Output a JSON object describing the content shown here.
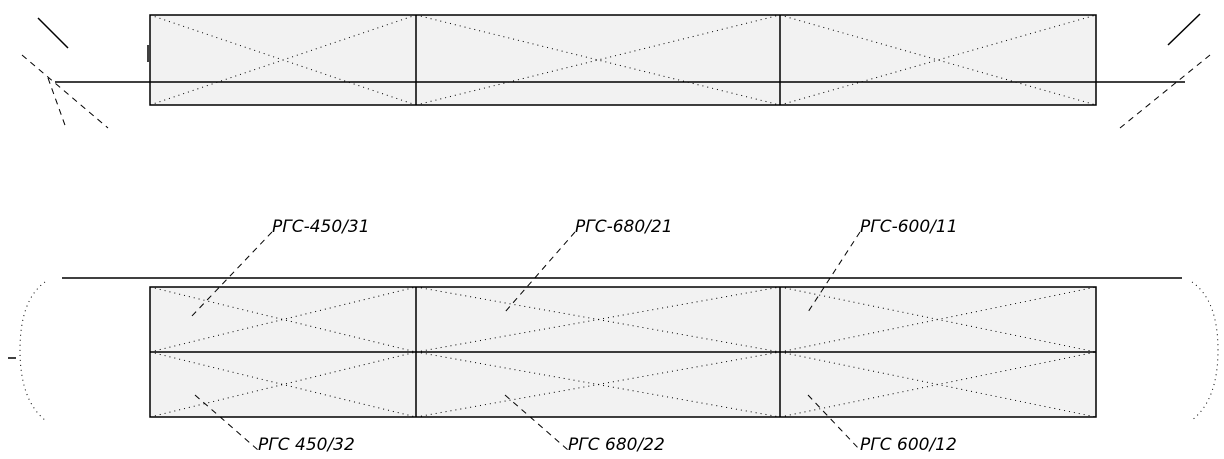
{
  "labels": {
    "top": [
      "РГС-450/31",
      "РГС-680/21",
      "РГС-600/11"
    ],
    "bottom": [
      "РГС 450/32",
      "РГС 680/22",
      "РГС 600/12"
    ]
  }
}
